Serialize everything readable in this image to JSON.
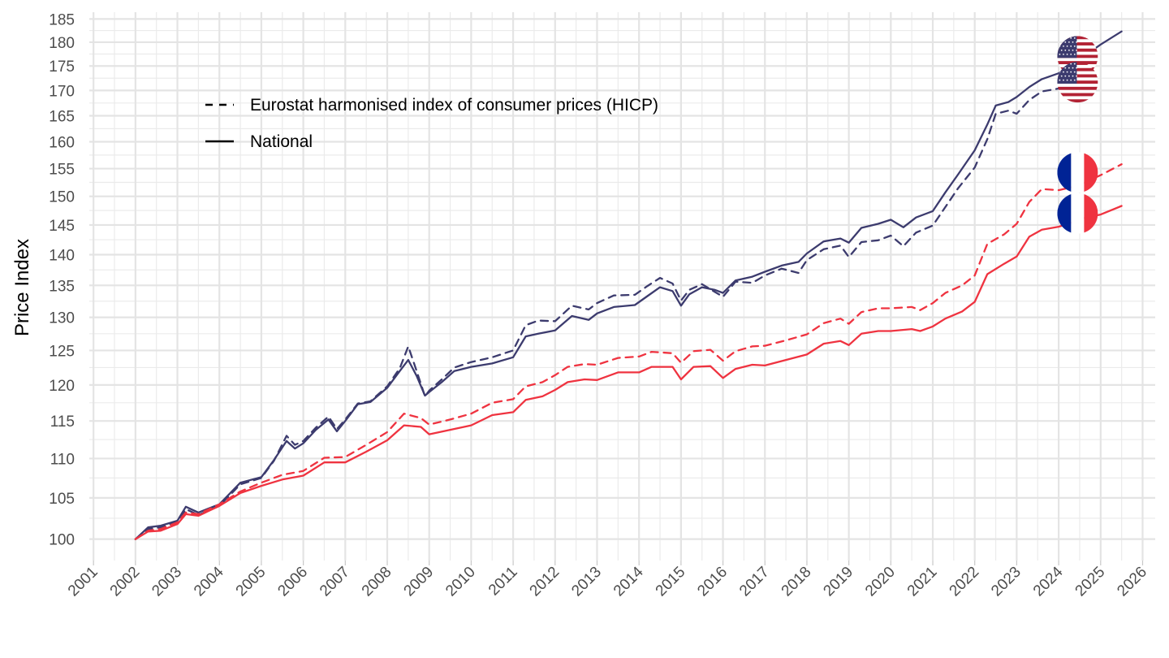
{
  "chart_data": {
    "type": "line",
    "title": "",
    "xlabel": "",
    "ylabel": "Price Index",
    "y_scale": "log",
    "xlim": [
      2000.9,
      2026.3
    ],
    "ylim": [
      97.5,
      186.5
    ],
    "grid": true,
    "legend_position": "top-left",
    "x_ticks": [
      "2001",
      "2002",
      "2003",
      "2004",
      "2005",
      "2006",
      "2007",
      "2008",
      "2009",
      "2010",
      "2011",
      "2012",
      "2013",
      "2014",
      "2015",
      "2016",
      "2017",
      "2018",
      "2019",
      "2020",
      "2021",
      "2022",
      "2023",
      "2024",
      "2025",
      "2026"
    ],
    "y_ticks": [
      100,
      105,
      110,
      115,
      120,
      125,
      130,
      135,
      140,
      145,
      150,
      155,
      160,
      165,
      170,
      175,
      180,
      185
    ],
    "y_tick_labels": [
      "100",
      "105",
      "110",
      "115",
      "120",
      "125",
      "130",
      "135",
      "140",
      "145",
      "150",
      "155",
      "160",
      "165",
      "170",
      "175",
      "180",
      "185"
    ],
    "legend": [
      {
        "label": "Eurostat harmonised index of consumer prices (HICP)",
        "linetype": "dashed"
      },
      {
        "label": "National",
        "linetype": "solid"
      }
    ],
    "series": [
      {
        "name": "United States - National",
        "country": "United States",
        "measure": "National",
        "color": "#3c3b6e",
        "linetype": "solid",
        "points": [
          [
            2002.0,
            100
          ],
          [
            2002.3,
            101.4
          ],
          [
            2002.6,
            101.6
          ],
          [
            2003.0,
            102.2
          ],
          [
            2003.2,
            103.9
          ],
          [
            2003.5,
            103.2
          ],
          [
            2004.0,
            104.2
          ],
          [
            2004.5,
            106.9
          ],
          [
            2005.0,
            107.6
          ],
          [
            2005.3,
            109.8
          ],
          [
            2005.6,
            112.3
          ],
          [
            2005.8,
            111.3
          ],
          [
            2006.0,
            112.0
          ],
          [
            2006.3,
            113.8
          ],
          [
            2006.6,
            115.2
          ],
          [
            2006.8,
            113.6
          ],
          [
            2007.0,
            115.0
          ],
          [
            2007.3,
            117.3
          ],
          [
            2007.6,
            117.6
          ],
          [
            2008.0,
            119.6
          ],
          [
            2008.3,
            122.0
          ],
          [
            2008.5,
            123.6
          ],
          [
            2008.7,
            121.3
          ],
          [
            2008.9,
            118.5
          ],
          [
            2009.0,
            119.0
          ],
          [
            2009.3,
            120.4
          ],
          [
            2009.6,
            122.0
          ],
          [
            2010.0,
            122.6
          ],
          [
            2010.5,
            123.1
          ],
          [
            2011.0,
            124.0
          ],
          [
            2011.3,
            127.1
          ],
          [
            2011.6,
            127.5
          ],
          [
            2012.0,
            128.0
          ],
          [
            2012.4,
            130.2
          ],
          [
            2012.8,
            129.6
          ],
          [
            2013.0,
            130.6
          ],
          [
            2013.4,
            131.6
          ],
          [
            2013.9,
            131.9
          ],
          [
            2014.2,
            133.3
          ],
          [
            2014.5,
            134.7
          ],
          [
            2014.8,
            134.1
          ],
          [
            2015.0,
            131.8
          ],
          [
            2015.2,
            133.6
          ],
          [
            2015.5,
            134.7
          ],
          [
            2015.8,
            134.3
          ],
          [
            2016.0,
            133.8
          ],
          [
            2016.3,
            135.8
          ],
          [
            2016.7,
            136.4
          ],
          [
            2017.0,
            137.2
          ],
          [
            2017.4,
            138.2
          ],
          [
            2017.8,
            138.8
          ],
          [
            2018.0,
            140.2
          ],
          [
            2018.4,
            142.2
          ],
          [
            2018.8,
            142.7
          ],
          [
            2019.0,
            142.0
          ],
          [
            2019.3,
            144.5
          ],
          [
            2019.7,
            145.2
          ],
          [
            2020.0,
            145.9
          ],
          [
            2020.3,
            144.6
          ],
          [
            2020.6,
            146.3
          ],
          [
            2021.0,
            147.4
          ],
          [
            2021.3,
            150.7
          ],
          [
            2021.6,
            153.9
          ],
          [
            2022.0,
            158.4
          ],
          [
            2022.3,
            163.3
          ],
          [
            2022.5,
            167.0
          ],
          [
            2022.8,
            167.7
          ],
          [
            2023.0,
            168.7
          ],
          [
            2023.3,
            170.7
          ],
          [
            2023.6,
            172.3
          ],
          [
            2024.0,
            173.5
          ],
          [
            2024.3,
            175.0
          ],
          [
            2024.6,
            177.0
          ],
          [
            2025.0,
            179.5
          ],
          [
            2025.5,
            182.3
          ]
        ]
      },
      {
        "name": "United States - HICP",
        "country": "United States",
        "measure": "Eurostat harmonised index of consumer prices (HICP)",
        "color": "#3c3b6e",
        "linetype": "dashed",
        "points": [
          [
            2002.0,
            100
          ],
          [
            2002.3,
            101.2
          ],
          [
            2002.6,
            101.4
          ],
          [
            2003.0,
            102.0
          ],
          [
            2003.2,
            103.6
          ],
          [
            2003.5,
            102.9
          ],
          [
            2004.0,
            104.0
          ],
          [
            2004.5,
            106.7
          ],
          [
            2005.0,
            107.5
          ],
          [
            2005.3,
            109.7
          ],
          [
            2005.6,
            113.0
          ],
          [
            2005.8,
            111.8
          ],
          [
            2006.0,
            112.3
          ],
          [
            2006.3,
            114.1
          ],
          [
            2006.6,
            115.6
          ],
          [
            2006.8,
            113.9
          ],
          [
            2007.0,
            115.2
          ],
          [
            2007.3,
            117.4
          ],
          [
            2007.6,
            117.7
          ],
          [
            2008.0,
            119.8
          ],
          [
            2008.3,
            122.4
          ],
          [
            2008.5,
            125.6
          ],
          [
            2008.7,
            122.0
          ],
          [
            2008.9,
            118.4
          ],
          [
            2009.0,
            119.2
          ],
          [
            2009.3,
            120.8
          ],
          [
            2009.6,
            122.5
          ],
          [
            2010.0,
            123.3
          ],
          [
            2010.5,
            124.0
          ],
          [
            2011.0,
            125.0
          ],
          [
            2011.3,
            128.8
          ],
          [
            2011.6,
            129.5
          ],
          [
            2012.0,
            129.4
          ],
          [
            2012.4,
            131.8
          ],
          [
            2012.8,
            131.2
          ],
          [
            2013.0,
            132.2
          ],
          [
            2013.4,
            133.4
          ],
          [
            2013.9,
            133.5
          ],
          [
            2014.2,
            134.9
          ],
          [
            2014.5,
            136.2
          ],
          [
            2014.8,
            135.3
          ],
          [
            2015.0,
            132.6
          ],
          [
            2015.2,
            134.3
          ],
          [
            2015.5,
            135.2
          ],
          [
            2015.8,
            134.0
          ],
          [
            2016.0,
            133.2
          ],
          [
            2016.3,
            135.6
          ],
          [
            2016.7,
            135.4
          ],
          [
            2017.0,
            136.6
          ],
          [
            2017.4,
            137.7
          ],
          [
            2017.8,
            137.0
          ],
          [
            2018.0,
            139.1
          ],
          [
            2018.4,
            140.9
          ],
          [
            2018.8,
            141.5
          ],
          [
            2019.0,
            139.6
          ],
          [
            2019.3,
            142.1
          ],
          [
            2019.7,
            142.4
          ],
          [
            2020.0,
            143.2
          ],
          [
            2020.3,
            141.4
          ],
          [
            2020.6,
            143.7
          ],
          [
            2021.0,
            144.9
          ],
          [
            2021.3,
            148.1
          ],
          [
            2021.6,
            151.4
          ],
          [
            2022.0,
            155.2
          ],
          [
            2022.3,
            160.5
          ],
          [
            2022.5,
            165.4
          ],
          [
            2022.8,
            166.0
          ],
          [
            2023.0,
            165.4
          ],
          [
            2023.3,
            168.1
          ],
          [
            2023.6,
            169.8
          ],
          [
            2024.0,
            170.4
          ],
          [
            2024.2,
            171.7
          ]
        ]
      },
      {
        "name": "France - National",
        "country": "France",
        "measure": "National",
        "color": "#ef3340",
        "linetype": "solid",
        "points": [
          [
            2002.0,
            100
          ],
          [
            2002.3,
            100.9
          ],
          [
            2002.6,
            101.0
          ],
          [
            2003.0,
            101.8
          ],
          [
            2003.2,
            103.0
          ],
          [
            2003.5,
            102.8
          ],
          [
            2004.0,
            104.0
          ],
          [
            2004.5,
            105.6
          ],
          [
            2005.0,
            106.5
          ],
          [
            2005.5,
            107.3
          ],
          [
            2006.0,
            107.8
          ],
          [
            2006.5,
            109.5
          ],
          [
            2007.0,
            109.5
          ],
          [
            2007.5,
            110.9
          ],
          [
            2008.0,
            112.4
          ],
          [
            2008.4,
            114.4
          ],
          [
            2008.8,
            114.2
          ],
          [
            2009.0,
            113.2
          ],
          [
            2009.5,
            113.8
          ],
          [
            2010.0,
            114.4
          ],
          [
            2010.5,
            115.8
          ],
          [
            2011.0,
            116.2
          ],
          [
            2011.3,
            117.9
          ],
          [
            2011.7,
            118.4
          ],
          [
            2012.0,
            119.3
          ],
          [
            2012.3,
            120.4
          ],
          [
            2012.7,
            120.8
          ],
          [
            2013.0,
            120.7
          ],
          [
            2013.5,
            121.8
          ],
          [
            2014.0,
            121.8
          ],
          [
            2014.3,
            122.6
          ],
          [
            2014.8,
            122.6
          ],
          [
            2015.0,
            120.8
          ],
          [
            2015.3,
            122.6
          ],
          [
            2015.7,
            122.7
          ],
          [
            2016.0,
            121.0
          ],
          [
            2016.3,
            122.3
          ],
          [
            2016.7,
            122.9
          ],
          [
            2017.0,
            122.8
          ],
          [
            2017.5,
            123.6
          ],
          [
            2018.0,
            124.4
          ],
          [
            2018.4,
            126.0
          ],
          [
            2018.8,
            126.4
          ],
          [
            2019.0,
            125.8
          ],
          [
            2019.3,
            127.5
          ],
          [
            2019.7,
            127.9
          ],
          [
            2020.0,
            127.9
          ],
          [
            2020.5,
            128.2
          ],
          [
            2020.7,
            127.9
          ],
          [
            2021.0,
            128.6
          ],
          [
            2021.3,
            129.8
          ],
          [
            2021.7,
            130.9
          ],
          [
            2022.0,
            132.4
          ],
          [
            2022.3,
            136.8
          ],
          [
            2022.7,
            138.5
          ],
          [
            2023.0,
            139.7
          ],
          [
            2023.3,
            143.0
          ],
          [
            2023.6,
            144.2
          ],
          [
            2024.0,
            144.7
          ],
          [
            2024.3,
            145.4
          ],
          [
            2024.6,
            146.2
          ],
          [
            2025.0,
            146.8
          ],
          [
            2025.5,
            148.3
          ]
        ]
      },
      {
        "name": "France - HICP",
        "country": "France",
        "measure": "Eurostat harmonised index of consumer prices (HICP)",
        "color": "#ef3340",
        "linetype": "dashed",
        "points": [
          [
            2002.0,
            100
          ],
          [
            2002.3,
            101.0
          ],
          [
            2002.6,
            101.2
          ],
          [
            2003.0,
            102.0
          ],
          [
            2003.2,
            103.2
          ],
          [
            2003.5,
            103.0
          ],
          [
            2004.0,
            104.2
          ],
          [
            2004.5,
            105.8
          ],
          [
            2005.0,
            106.9
          ],
          [
            2005.5,
            107.9
          ],
          [
            2006.0,
            108.4
          ],
          [
            2006.5,
            110.1
          ],
          [
            2007.0,
            110.2
          ],
          [
            2007.5,
            111.8
          ],
          [
            2008.0,
            113.5
          ],
          [
            2008.4,
            116.0
          ],
          [
            2008.8,
            115.4
          ],
          [
            2009.0,
            114.5
          ],
          [
            2009.5,
            115.2
          ],
          [
            2010.0,
            116.0
          ],
          [
            2010.5,
            117.5
          ],
          [
            2011.0,
            118.0
          ],
          [
            2011.3,
            119.8
          ],
          [
            2011.7,
            120.4
          ],
          [
            2012.0,
            121.4
          ],
          [
            2012.3,
            122.6
          ],
          [
            2012.7,
            123.0
          ],
          [
            2013.0,
            122.9
          ],
          [
            2013.5,
            123.9
          ],
          [
            2014.0,
            124.1
          ],
          [
            2014.3,
            124.8
          ],
          [
            2014.8,
            124.6
          ],
          [
            2015.0,
            123.2
          ],
          [
            2015.3,
            124.9
          ],
          [
            2015.7,
            125.1
          ],
          [
            2016.0,
            123.5
          ],
          [
            2016.3,
            124.9
          ],
          [
            2016.7,
            125.6
          ],
          [
            2017.0,
            125.7
          ],
          [
            2017.5,
            126.5
          ],
          [
            2018.0,
            127.4
          ],
          [
            2018.4,
            129.1
          ],
          [
            2018.8,
            129.8
          ],
          [
            2019.0,
            129.0
          ],
          [
            2019.3,
            130.8
          ],
          [
            2019.7,
            131.4
          ],
          [
            2020.0,
            131.4
          ],
          [
            2020.5,
            131.6
          ],
          [
            2020.7,
            131.1
          ],
          [
            2021.0,
            132.2
          ],
          [
            2021.3,
            133.8
          ],
          [
            2021.7,
            135.0
          ],
          [
            2022.0,
            136.6
          ],
          [
            2022.3,
            141.8
          ],
          [
            2022.7,
            143.4
          ],
          [
            2023.0,
            145.2
          ],
          [
            2023.3,
            149.0
          ],
          [
            2023.6,
            151.3
          ],
          [
            2024.0,
            151.1
          ],
          [
            2024.3,
            151.6
          ],
          [
            2024.6,
            152.4
          ],
          [
            2025.0,
            153.8
          ],
          [
            2025.5,
            155.8
          ]
        ]
      }
    ],
    "flag_markers": [
      {
        "country": "United States",
        "flag": "us-flag",
        "x": 2024.45,
        "y": 177.0
      },
      {
        "country": "United States",
        "flag": "us-flag",
        "x": 2024.45,
        "y": 171.7
      },
      {
        "country": "France",
        "flag": "fr-flag",
        "x": 2024.45,
        "y": 154.3
      },
      {
        "country": "France",
        "flag": "fr-flag",
        "x": 2024.45,
        "y": 147.0
      }
    ]
  }
}
